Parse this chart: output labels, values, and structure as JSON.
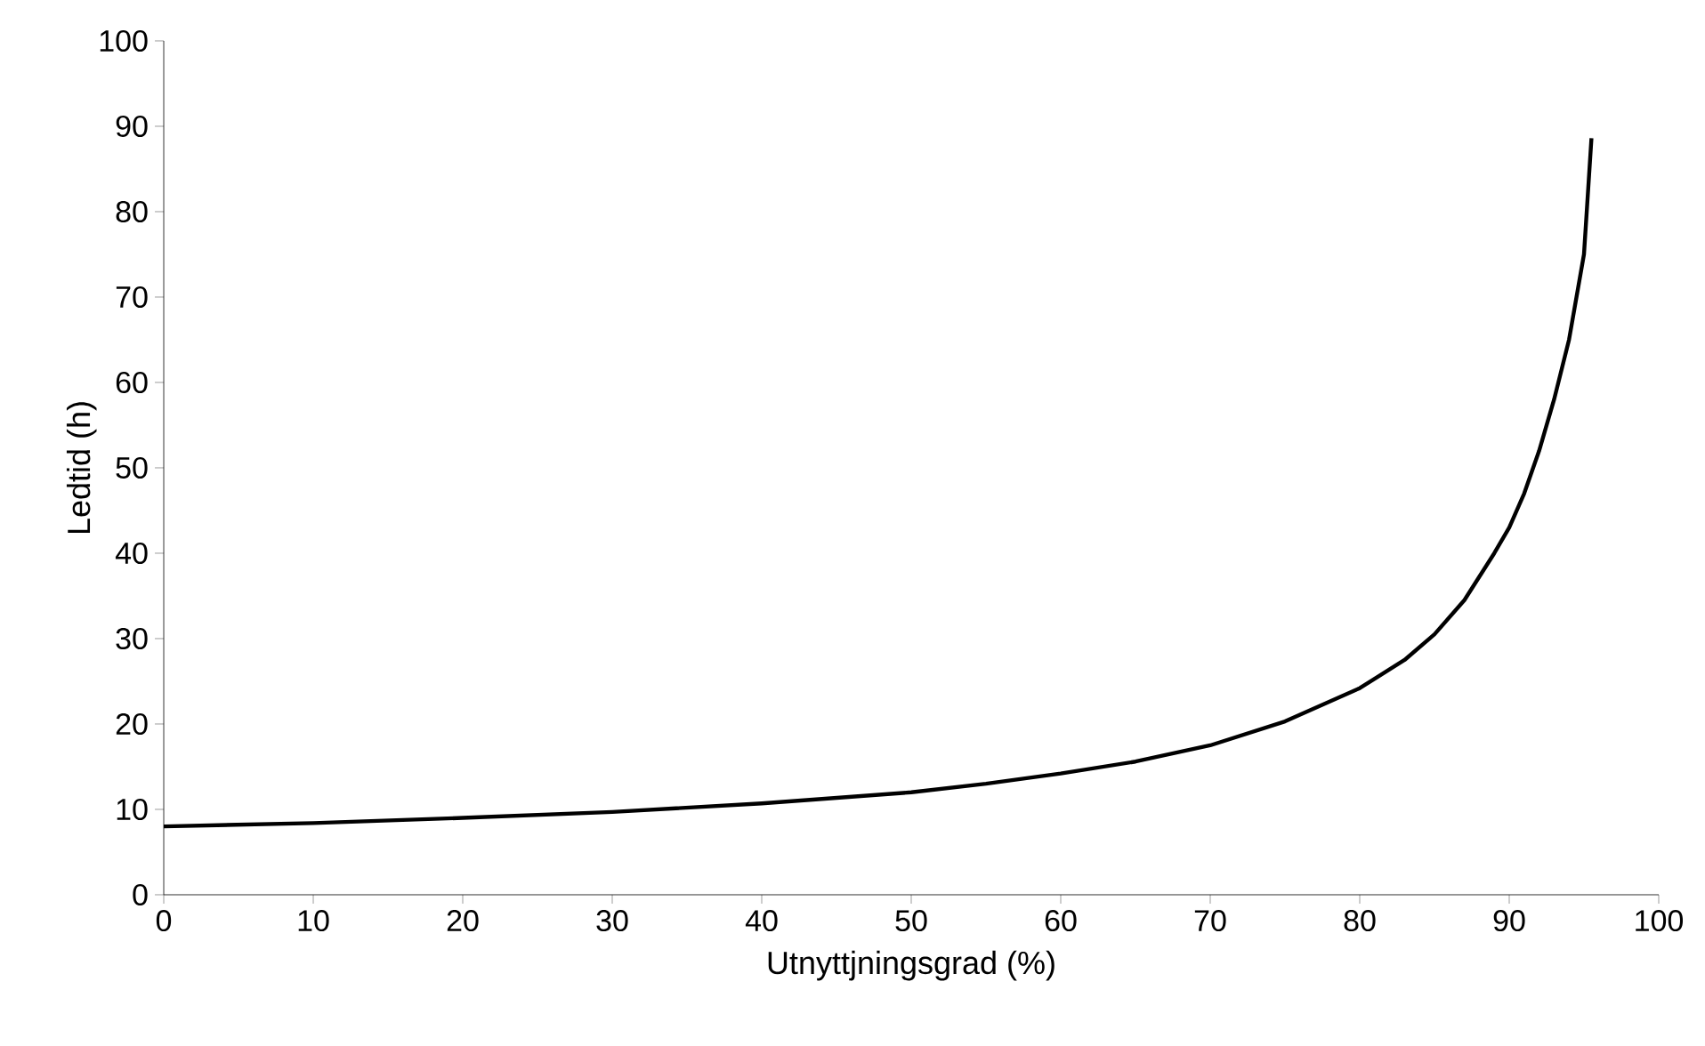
{
  "chart_data": {
    "type": "line",
    "xlabel": "Utnyttjningsgrad (%)",
    "ylabel": "Ledtid (h)",
    "series": [
      {
        "color": "#000000",
        "x": [
          0,
          10,
          20,
          30,
          40,
          50,
          55,
          60,
          65,
          70,
          75,
          80,
          83,
          85,
          87,
          89,
          90,
          91,
          92,
          93,
          94,
          95,
          95.5
        ],
        "values": [
          8.0,
          8.4,
          9.0,
          9.7,
          10.7,
          12.0,
          13.0,
          14.2,
          15.6,
          17.5,
          20.3,
          24.2,
          27.5,
          30.5,
          34.5,
          40,
          43,
          47,
          52,
          58,
          65,
          75,
          88.6
        ]
      }
    ],
    "xlim": [
      0,
      100
    ],
    "ylim": [
      0,
      100
    ],
    "xticks": [
      0,
      10,
      20,
      30,
      40,
      50,
      60,
      70,
      80,
      90,
      100
    ],
    "yticks": [
      0,
      10,
      20,
      30,
      40,
      50,
      60,
      70,
      80,
      90,
      100
    ],
    "grid": false,
    "marker": "none",
    "line_style": "solid"
  }
}
